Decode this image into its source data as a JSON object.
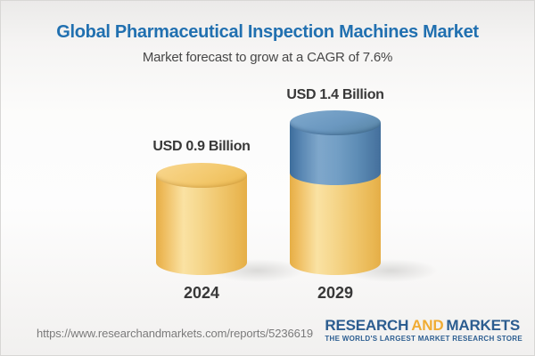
{
  "header": {
    "title": "Global Pharmaceutical Inspection Machines Market",
    "subtitle": "Market forecast to grow at a CAGR of 7.6%"
  },
  "chart_data": {
    "type": "bar",
    "bar_style": "3d-cylinder-stacked",
    "title": "Global Pharmaceutical Inspection Machines Market",
    "subtitle": "Market forecast to grow at a CAGR of 7.6%",
    "cagr_percent": 7.6,
    "unit": "USD Billion",
    "categories": [
      "2024",
      "2029"
    ],
    "values": [
      0.9,
      1.4
    ],
    "value_labels": [
      "USD 0.9 Billion",
      "USD 1.4 Billion"
    ],
    "series": [
      {
        "name": "base",
        "color": "#f0c467",
        "values": [
          0.9,
          0.9
        ]
      },
      {
        "name": "growth",
        "color": "#6896bf",
        "values": [
          0,
          0.5
        ]
      }
    ],
    "legend": "none",
    "axes": "none"
  },
  "footer": {
    "url": "https://www.researchandmarkets.com/reports/5236619",
    "logo": {
      "part1": "RESEARCH",
      "part2": "AND",
      "part3": "MARKETS",
      "tagline": "THE WORLD'S LARGEST MARKET RESEARCH STORE"
    }
  },
  "colors": {
    "title_blue": "#2170b0",
    "text_dark": "#383838",
    "gold": "#f0c467",
    "blue": "#6896bf",
    "logo_blue": "#2c5d90",
    "logo_gold": "#f0ac34",
    "url_gray": "#7b7b7b"
  }
}
